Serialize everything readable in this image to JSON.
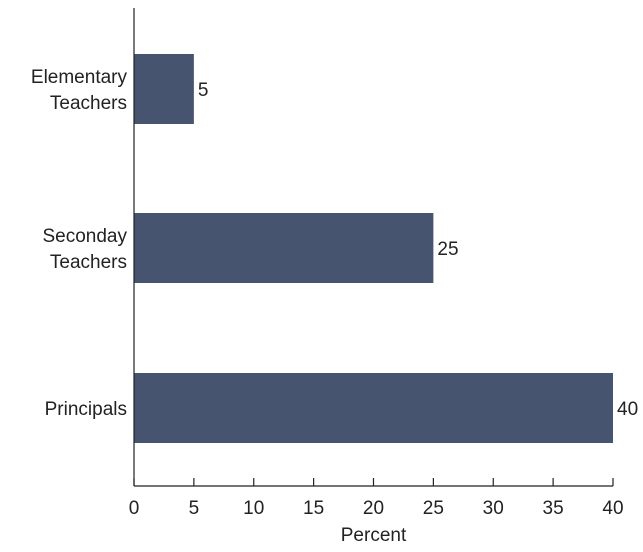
{
  "chart_data": {
    "type": "bar",
    "orientation": "horizontal",
    "categories": [
      [
        "Elementary",
        "Teachers"
      ],
      [
        "Seconday",
        "Teachers"
      ],
      [
        "Principals"
      ]
    ],
    "values": [
      5,
      25,
      40
    ],
    "data_labels": [
      "5",
      "25",
      "40"
    ],
    "xlabel": "Percent",
    "xlim": [
      0,
      40
    ],
    "xticks": [
      "0",
      "5",
      "10",
      "15",
      "20",
      "25",
      "30",
      "35",
      "40"
    ],
    "grid": false,
    "legend": "none",
    "colors": {
      "bar": "#47546f",
      "axis": "#222222"
    }
  }
}
